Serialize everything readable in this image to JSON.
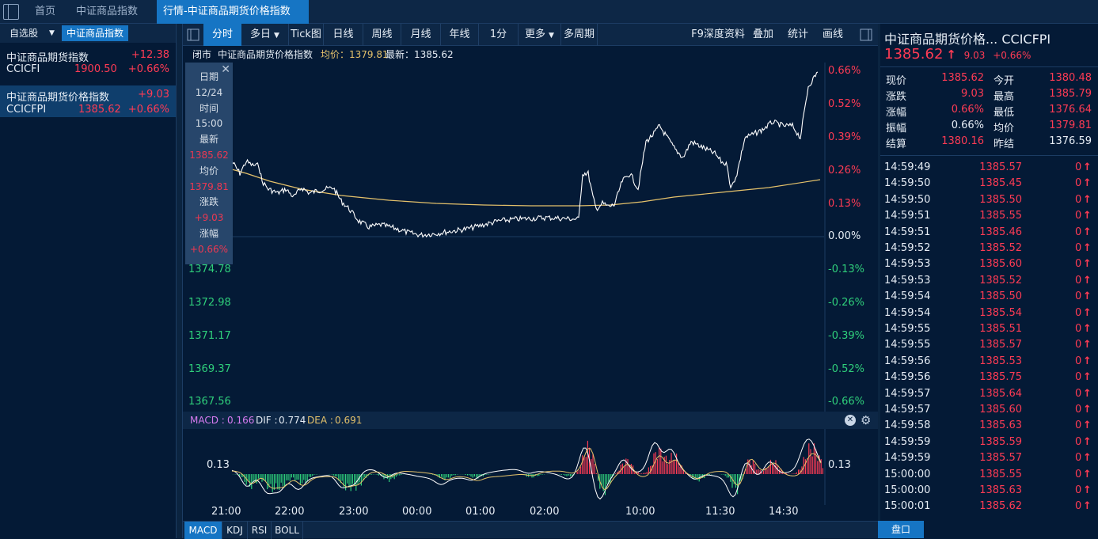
{
  "tabs": {
    "home": "首页",
    "commodity": "中证商品指数",
    "active": "行情-中证商品期货价格指数",
    "close": "×"
  },
  "left": {
    "watch_btn": "自选股",
    "dropdown": "▼",
    "index_btn": "中证商品指数",
    "rows": [
      {
        "name": "中证商品期货指数",
        "change": "+12.38",
        "code": "CCICFI",
        "price": "1900.50",
        "pct": "+0.66%"
      },
      {
        "name": "中证商品期货价格指数",
        "change": "+9.03",
        "code": "CCICFPI",
        "price": "1385.62",
        "pct": "+0.66%"
      }
    ]
  },
  "toolbar": {
    "items": [
      "分时",
      "多日",
      "Tick图",
      "日线",
      "周线",
      "月线",
      "年线",
      "1分",
      "更多",
      "多周期"
    ],
    "right": [
      "F9深度资料",
      "叠加",
      "统计",
      "画线"
    ]
  },
  "info": {
    "status": "闭市",
    "name": "中证商品期货价格指数",
    "avg_label": "均价：",
    "avg": "1379.81",
    "last_label": "最新：",
    "last": "1385.62"
  },
  "tooltip": {
    "date_label": "日期",
    "date": "12/24",
    "time_label": "时间",
    "time": "15:00",
    "last_label": "最新",
    "last": "1385.62",
    "avg_label": "均价",
    "avg": "1379.81",
    "chg_label": "涨跌",
    "chg": "+9.03",
    "pct_label": "涨幅",
    "pct": "+0.66%"
  },
  "y_left": [
    "1374.78",
    "1372.98",
    "1371.17",
    "1369.37",
    "1367.56"
  ],
  "y_right": {
    "red": [
      "0.66%",
      "0.52%",
      "0.39%",
      "0.26%",
      "0.13%"
    ],
    "zero": "0.00%",
    "green": [
      "-0.13%",
      "-0.26%",
      "-0.39%",
      "-0.52%",
      "-0.66%"
    ]
  },
  "macd": {
    "label": "MACD :",
    "value": "0.166",
    "dif_label": "DIF :",
    "dif": "0.774",
    "dea_label": "DEA :",
    "dea": "0.691",
    "left_tick": "0.13",
    "right_tick": "0.13"
  },
  "time_axis": [
    "21:00",
    "22:00",
    "23:00",
    "00:00",
    "01:00",
    "02:00",
    "10:00",
    "11:30",
    "14:30"
  ],
  "indicators": [
    "MACD",
    "KDJ",
    "RSI",
    "BOLL"
  ],
  "right": {
    "title": "中证商品期货价格... CCICFPI",
    "price": "1385.62",
    "arrow": "↑",
    "change": "9.03",
    "pct": "+0.66%",
    "stats": [
      {
        "label": "现价",
        "value": "1385.62",
        "label2": "今开",
        "value2": "1380.48"
      },
      {
        "label": "涨跌",
        "value": "9.03",
        "label2": "最高",
        "value2": "1385.79"
      },
      {
        "label": "涨幅",
        "value": "0.66%",
        "label2": "最低",
        "value2": "1376.64"
      },
      {
        "label": "振幅",
        "value": "0.66%",
        "label2": "均价",
        "value2": "1379.81"
      },
      {
        "label": "结算",
        "value": "1380.16",
        "label2": "昨结",
        "value2": "1376.59"
      }
    ],
    "ticks": [
      {
        "t": "14:59:49",
        "p": "1385.57",
        "v": "0"
      },
      {
        "t": "14:59:50",
        "p": "1385.45",
        "v": "0"
      },
      {
        "t": "14:59:50",
        "p": "1385.50",
        "v": "0"
      },
      {
        "t": "14:59:51",
        "p": "1385.55",
        "v": "0"
      },
      {
        "t": "14:59:51",
        "p": "1385.46",
        "v": "0"
      },
      {
        "t": "14:59:52",
        "p": "1385.52",
        "v": "0"
      },
      {
        "t": "14:59:53",
        "p": "1385.60",
        "v": "0"
      },
      {
        "t": "14:59:53",
        "p": "1385.52",
        "v": "0"
      },
      {
        "t": "14:59:54",
        "p": "1385.50",
        "v": "0"
      },
      {
        "t": "14:59:54",
        "p": "1385.54",
        "v": "0"
      },
      {
        "t": "14:59:55",
        "p": "1385.51",
        "v": "0"
      },
      {
        "t": "14:59:55",
        "p": "1385.57",
        "v": "0"
      },
      {
        "t": "14:59:56",
        "p": "1385.53",
        "v": "0"
      },
      {
        "t": "14:59:56",
        "p": "1385.75",
        "v": "0"
      },
      {
        "t": "14:59:57",
        "p": "1385.64",
        "v": "0"
      },
      {
        "t": "14:59:57",
        "p": "1385.60",
        "v": "0"
      },
      {
        "t": "14:59:58",
        "p": "1385.63",
        "v": "0"
      },
      {
        "t": "14:59:59",
        "p": "1385.59",
        "v": "0"
      },
      {
        "t": "14:59:59",
        "p": "1385.57",
        "v": "0"
      },
      {
        "t": "15:00:00",
        "p": "1385.55",
        "v": "0"
      },
      {
        "t": "15:00:00",
        "p": "1385.63",
        "v": "0"
      },
      {
        "t": "15:00:01",
        "p": "1385.62",
        "v": "0"
      }
    ],
    "pankou": "盘口"
  },
  "colors": {
    "up": "#ff3b54",
    "down": "#2fcf7b",
    "accent": "#1675c4",
    "avg_line": "#e5c26b",
    "price_line": "#ffffff"
  }
}
